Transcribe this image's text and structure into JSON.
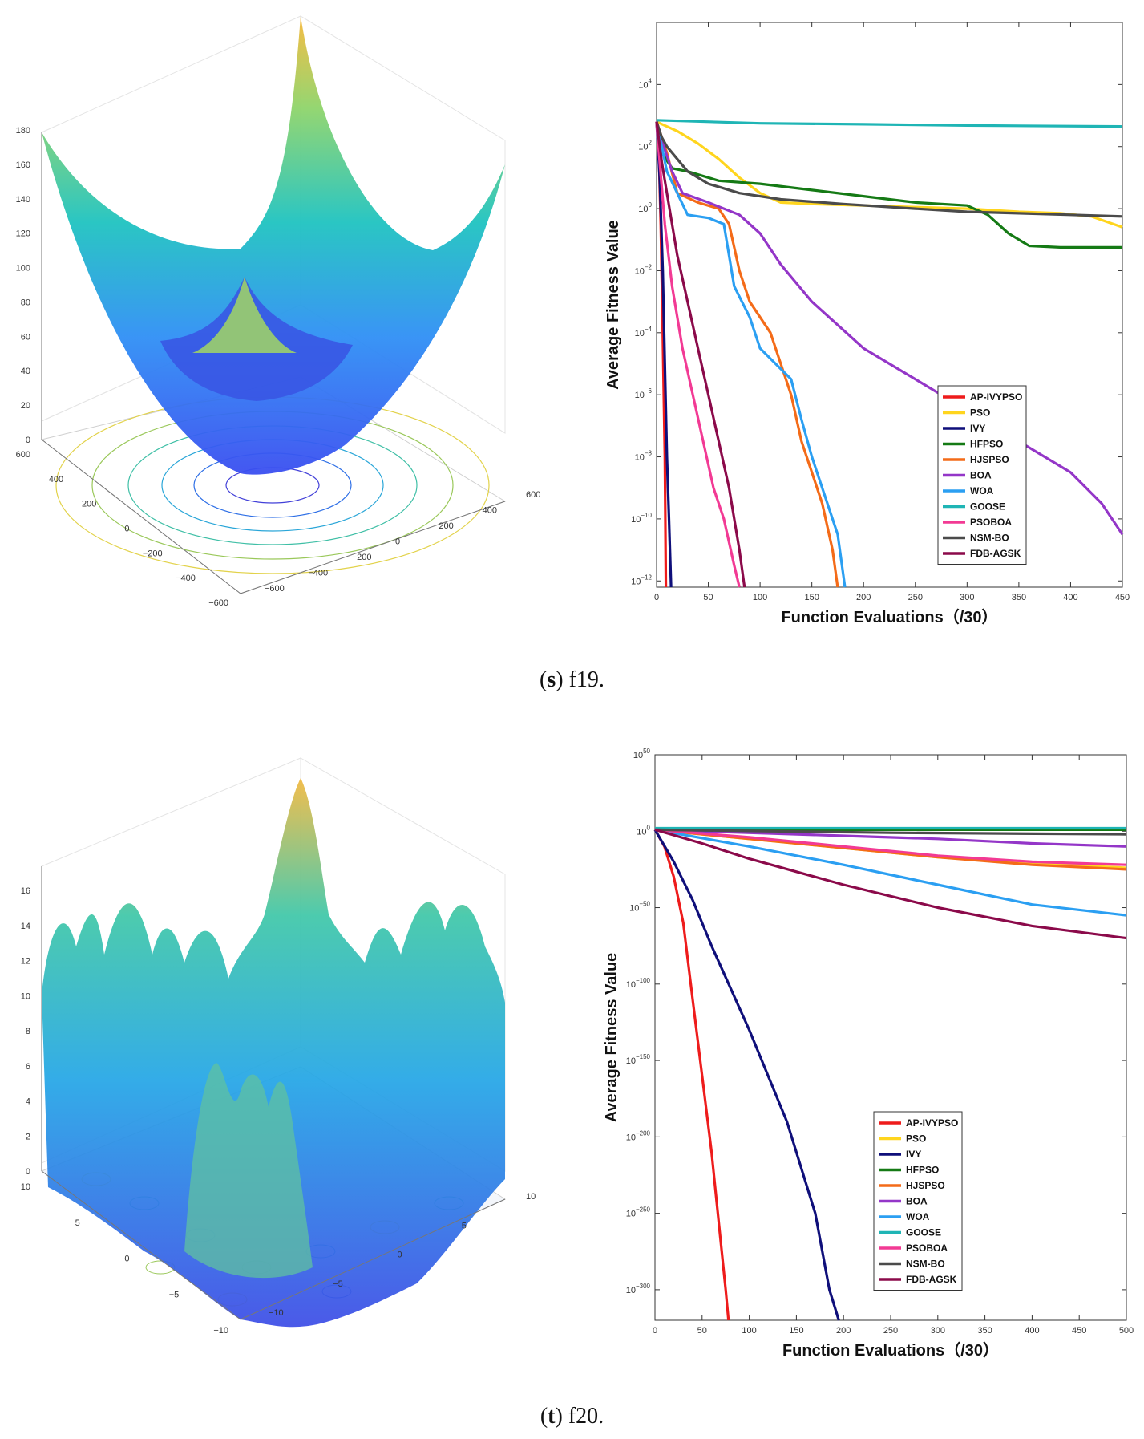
{
  "captions": [
    {
      "letter": "s",
      "text": " f19."
    },
    {
      "letter": "t",
      "text": " f20."
    }
  ],
  "surface_f19": {
    "z_ticks": [
      "0",
      "20",
      "40",
      "60",
      "80",
      "100",
      "120",
      "140",
      "160",
      "180"
    ],
    "x_ticks": [
      "600",
      "400",
      "200",
      "0",
      "−200",
      "−400",
      "−600"
    ],
    "y_ticks": [
      "600",
      "400",
      "200",
      "0",
      "−200",
      "−400",
      "−600"
    ]
  },
  "surface_f20": {
    "z_ticks": [
      "0",
      "2",
      "4",
      "6",
      "8",
      "10",
      "12",
      "14",
      "16"
    ],
    "x_ticks": [
      "10",
      "5",
      "0",
      "−5",
      "−10"
    ],
    "y_ticks": [
      "10",
      "5",
      "0",
      "−5",
      "−10"
    ]
  },
  "chart_data": [
    {
      "type": "line",
      "id": "f19",
      "xlabel": "Function Evaluations（/30）",
      "ylabel": "Average Fitness Value",
      "yscale": "log",
      "xlim": [
        0,
        450
      ],
      "ylim_exp": [
        -12.2,
        6
      ],
      "x_ticks": [
        0,
        50,
        100,
        150,
        200,
        250,
        300,
        350,
        400,
        450
      ],
      "y_tick_exps": [
        -12,
        -10,
        -8,
        -6,
        -4,
        -2,
        0,
        2,
        4
      ],
      "series": [
        {
          "name": "AP-IVYPSO",
          "color": "#ee1c1c",
          "points": [
            [
              0,
              2.8
            ],
            [
              2,
              2
            ],
            [
              4,
              -0.5
            ],
            [
              6,
              -4
            ],
            [
              8,
              -8
            ],
            [
              9,
              -12.2
            ]
          ]
        },
        {
          "name": "PSO",
          "color": "#ffd51e",
          "points": [
            [
              0,
              2.8
            ],
            [
              20,
              2.5
            ],
            [
              40,
              2.1
            ],
            [
              60,
              1.6
            ],
            [
              80,
              1.0
            ],
            [
              100,
              0.5
            ],
            [
              120,
              0.2
            ],
            [
              150,
              0.15
            ],
            [
              200,
              0.1
            ],
            [
              250,
              0.05
            ],
            [
              300,
              0
            ],
            [
              350,
              -0.1
            ],
            [
              390,
              -0.15
            ],
            [
              420,
              -0.25
            ],
            [
              450,
              -0.6
            ]
          ]
        },
        {
          "name": "IVY",
          "color": "#0f0f7a",
          "points": [
            [
              0,
              2.8
            ],
            [
              3,
              1
            ],
            [
              6,
              -2
            ],
            [
              8,
              -5
            ],
            [
              10,
              -8
            ],
            [
              12,
              -10
            ],
            [
              14,
              -12.2
            ]
          ]
        },
        {
          "name": "HFPSO",
          "color": "#157a15",
          "points": [
            [
              0,
              2.8
            ],
            [
              5,
              1.8
            ],
            [
              15,
              1.3
            ],
            [
              30,
              1.2
            ],
            [
              60,
              0.9
            ],
            [
              100,
              0.8
            ],
            [
              150,
              0.6
            ],
            [
              200,
              0.4
            ],
            [
              250,
              0.2
            ],
            [
              300,
              0.1
            ],
            [
              320,
              -0.2
            ],
            [
              340,
              -0.8
            ],
            [
              360,
              -1.2
            ],
            [
              390,
              -1.25
            ],
            [
              450,
              -1.25
            ]
          ]
        },
        {
          "name": "HJSPSO",
          "color": "#f46b18",
          "points": [
            [
              0,
              2.8
            ],
            [
              10,
              1.8
            ],
            [
              20,
              0.5
            ],
            [
              40,
              0.2
            ],
            [
              60,
              0
            ],
            [
              70,
              -0.5
            ],
            [
              80,
              -2
            ],
            [
              90,
              -3
            ],
            [
              110,
              -4
            ],
            [
              120,
              -5
            ],
            [
              130,
              -6
            ],
            [
              140,
              -7.5
            ],
            [
              150,
              -8.5
            ],
            [
              160,
              -9.5
            ],
            [
              170,
              -11
            ],
            [
              175,
              -12.2
            ]
          ]
        },
        {
          "name": "BOA",
          "color": "#9436c8",
          "points": [
            [
              0,
              2.8
            ],
            [
              5,
              2.2
            ],
            [
              15,
              1.2
            ],
            [
              25,
              0.5
            ],
            [
              50,
              0.2
            ],
            [
              80,
              -0.2
            ],
            [
              100,
              -0.8
            ],
            [
              120,
              -1.8
            ],
            [
              150,
              -3
            ],
            [
              200,
              -4.5
            ],
            [
              250,
              -5.5
            ],
            [
              300,
              -6.5
            ],
            [
              350,
              -7.5
            ],
            [
              400,
              -8.5
            ],
            [
              430,
              -9.5
            ],
            [
              450,
              -10.5
            ]
          ]
        },
        {
          "name": "WOA",
          "color": "#2b9ff2",
          "points": [
            [
              0,
              2.8
            ],
            [
              5,
              2
            ],
            [
              10,
              1.2
            ],
            [
              20,
              0.5
            ],
            [
              30,
              -0.2
            ],
            [
              50,
              -0.3
            ],
            [
              65,
              -0.5
            ],
            [
              75,
              -2.5
            ],
            [
              90,
              -3.5
            ],
            [
              100,
              -4.5
            ],
            [
              130,
              -5.5
            ],
            [
              140,
              -6.8
            ],
            [
              150,
              -8
            ],
            [
              160,
              -9
            ],
            [
              175,
              -10.5
            ],
            [
              182,
              -12.2
            ]
          ]
        },
        {
          "name": "GOOSE",
          "color": "#1fb5b5",
          "points": [
            [
              0,
              2.85
            ],
            [
              100,
              2.75
            ],
            [
              200,
              2.72
            ],
            [
              300,
              2.68
            ],
            [
              450,
              2.65
            ]
          ]
        },
        {
          "name": "PSOBOA",
          "color": "#f23a94",
          "points": [
            [
              0,
              2.8
            ],
            [
              3,
              1.5
            ],
            [
              8,
              -0.5
            ],
            [
              15,
              -2.5
            ],
            [
              25,
              -4.5
            ],
            [
              35,
              -6
            ],
            [
              45,
              -7.5
            ],
            [
              55,
              -9
            ],
            [
              65,
              -10
            ],
            [
              75,
              -11.5
            ],
            [
              80,
              -12.2
            ]
          ]
        },
        {
          "name": "NSM-BO",
          "color": "#4b4b4b",
          "points": [
            [
              0,
              2.8
            ],
            [
              5,
              2.3
            ],
            [
              10,
              2
            ],
            [
              20,
              1.6
            ],
            [
              30,
              1.2
            ],
            [
              50,
              0.8
            ],
            [
              80,
              0.5
            ],
            [
              120,
              0.3
            ],
            [
              180,
              0.15
            ],
            [
              250,
              0
            ],
            [
              300,
              -0.1
            ],
            [
              350,
              -0.15
            ],
            [
              400,
              -0.2
            ],
            [
              450,
              -0.25
            ]
          ]
        },
        {
          "name": "FDB-AGSK",
          "color": "#8b0a4a",
          "points": [
            [
              0,
              2.8
            ],
            [
              5,
              1.5
            ],
            [
              10,
              0.5
            ],
            [
              20,
              -1.5
            ],
            [
              30,
              -3
            ],
            [
              40,
              -4.5
            ],
            [
              50,
              -6
            ],
            [
              60,
              -7.5
            ],
            [
              70,
              -9
            ],
            [
              80,
              -11
            ],
            [
              85,
              -12.2
            ]
          ]
        }
      ]
    },
    {
      "type": "line",
      "id": "f20",
      "xlabel": "Function Evaluations（/30）",
      "ylabel": "Average Fitness Value",
      "yscale": "log",
      "xlim": [
        0,
        500
      ],
      "ylim_exp": [
        -320,
        50
      ],
      "x_ticks": [
        0,
        50,
        100,
        150,
        200,
        250,
        300,
        350,
        400,
        450,
        500
      ],
      "y_tick_exps": [
        -300,
        -250,
        -200,
        -150,
        -100,
        -50,
        0,
        50
      ],
      "series": [
        {
          "name": "AP-IVYPSO",
          "color": "#ee1c1c",
          "points": [
            [
              0,
              1
            ],
            [
              10,
              -10
            ],
            [
              20,
              -30
            ],
            [
              30,
              -60
            ],
            [
              40,
              -110
            ],
            [
              50,
              -160
            ],
            [
              60,
              -210
            ],
            [
              70,
              -270
            ],
            [
              75,
              -300
            ],
            [
              78,
              -320
            ]
          ]
        },
        {
          "name": "PSO",
          "color": "#ffd51e",
          "points": [
            [
              0,
              1
            ],
            [
              100,
              -5
            ],
            [
              200,
              -11
            ],
            [
              300,
              -17
            ],
            [
              400,
              -21
            ],
            [
              500,
              -24
            ]
          ]
        },
        {
          "name": "IVY",
          "color": "#0f0f7a",
          "points": [
            [
              0,
              1
            ],
            [
              20,
              -20
            ],
            [
              40,
              -45
            ],
            [
              60,
              -75
            ],
            [
              100,
              -130
            ],
            [
              140,
              -190
            ],
            [
              170,
              -250
            ],
            [
              185,
              -300
            ],
            [
              195,
              -320
            ]
          ]
        },
        {
          "name": "HFPSO",
          "color": "#157a15",
          "points": [
            [
              0,
              1
            ],
            [
              250,
              1
            ],
            [
              500,
              1
            ]
          ]
        },
        {
          "name": "HJSPSO",
          "color": "#f46b18",
          "points": [
            [
              0,
              1
            ],
            [
              100,
              -5
            ],
            [
              200,
              -11
            ],
            [
              300,
              -17
            ],
            [
              400,
              -22
            ],
            [
              500,
              -25
            ]
          ]
        },
        {
          "name": "BOA",
          "color": "#9436c8",
          "points": [
            [
              0,
              1
            ],
            [
              200,
              -3
            ],
            [
              300,
              -5
            ],
            [
              400,
              -8
            ],
            [
              500,
              -10
            ]
          ]
        },
        {
          "name": "WOA",
          "color": "#2b9ff2",
          "points": [
            [
              0,
              1
            ],
            [
              100,
              -10
            ],
            [
              200,
              -22
            ],
            [
              300,
              -35
            ],
            [
              400,
              -48
            ],
            [
              500,
              -55
            ]
          ]
        },
        {
          "name": "GOOSE",
          "color": "#1fb5b5",
          "points": [
            [
              0,
              2
            ],
            [
              250,
              2
            ],
            [
              500,
              2
            ]
          ]
        },
        {
          "name": "PSOBOA",
          "color": "#f23a94",
          "points": [
            [
              0,
              1
            ],
            [
              100,
              -4
            ],
            [
              200,
              -10
            ],
            [
              300,
              -16
            ],
            [
              400,
              -20
            ],
            [
              500,
              -22
            ]
          ]
        },
        {
          "name": "NSM-BO",
          "color": "#4b4b4b",
          "points": [
            [
              0,
              1
            ],
            [
              250,
              -1
            ],
            [
              500,
              -2
            ]
          ]
        },
        {
          "name": "FDB-AGSK",
          "color": "#8b0a4a",
          "points": [
            [
              0,
              1
            ],
            [
              50,
              -8
            ],
            [
              100,
              -18
            ],
            [
              200,
              -35
            ],
            [
              300,
              -50
            ],
            [
              400,
              -62
            ],
            [
              500,
              -70
            ]
          ]
        }
      ]
    }
  ]
}
